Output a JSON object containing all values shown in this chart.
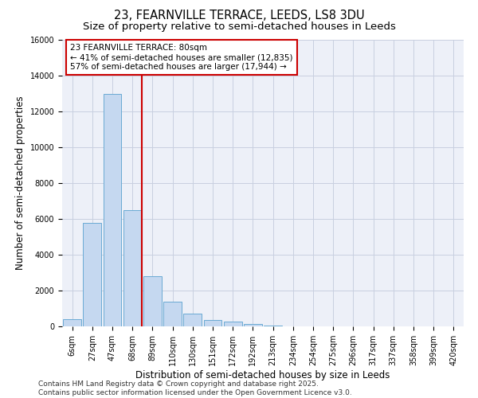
{
  "title_line1": "23, FEARNVILLE TERRACE, LEEDS, LS8 3DU",
  "title_line2": "Size of property relative to semi-detached houses in Leeds",
  "xlabel": "Distribution of semi-detached houses by size in Leeds",
  "ylabel": "Number of semi-detached properties",
  "categories": [
    "6sqm",
    "27sqm",
    "47sqm",
    "68sqm",
    "89sqm",
    "110sqm",
    "130sqm",
    "151sqm",
    "172sqm",
    "192sqm",
    "213sqm",
    "234sqm",
    "254sqm",
    "275sqm",
    "296sqm",
    "317sqm",
    "337sqm",
    "358sqm",
    "399sqm",
    "420sqm"
  ],
  "values": [
    400,
    5800,
    13000,
    6500,
    2800,
    1400,
    700,
    350,
    250,
    150,
    60,
    20,
    10,
    5,
    2,
    1,
    0,
    0,
    0,
    0
  ],
  "bar_color": "#c5d8f0",
  "bar_edge_color": "#6aaad4",
  "vline_color": "#cc0000",
  "annotation_text": "23 FEARNVILLE TERRACE: 80sqm\n← 41% of semi-detached houses are smaller (12,835)\n57% of semi-detached houses are larger (17,944) →",
  "annotation_box_color": "#ffffff",
  "annotation_box_edge": "#cc0000",
  "ylim": [
    0,
    16000
  ],
  "yticks": [
    0,
    2000,
    4000,
    6000,
    8000,
    10000,
    12000,
    14000,
    16000
  ],
  "grid_color": "#c8d0e0",
  "background_color": "#edf0f8",
  "footer_text": "Contains HM Land Registry data © Crown copyright and database right 2025.\nContains public sector information licensed under the Open Government Licence v3.0.",
  "title_fontsize": 10.5,
  "subtitle_fontsize": 9.5,
  "axis_label_fontsize": 8.5,
  "tick_fontsize": 7,
  "annotation_fontsize": 7.5,
  "footer_fontsize": 6.5
}
